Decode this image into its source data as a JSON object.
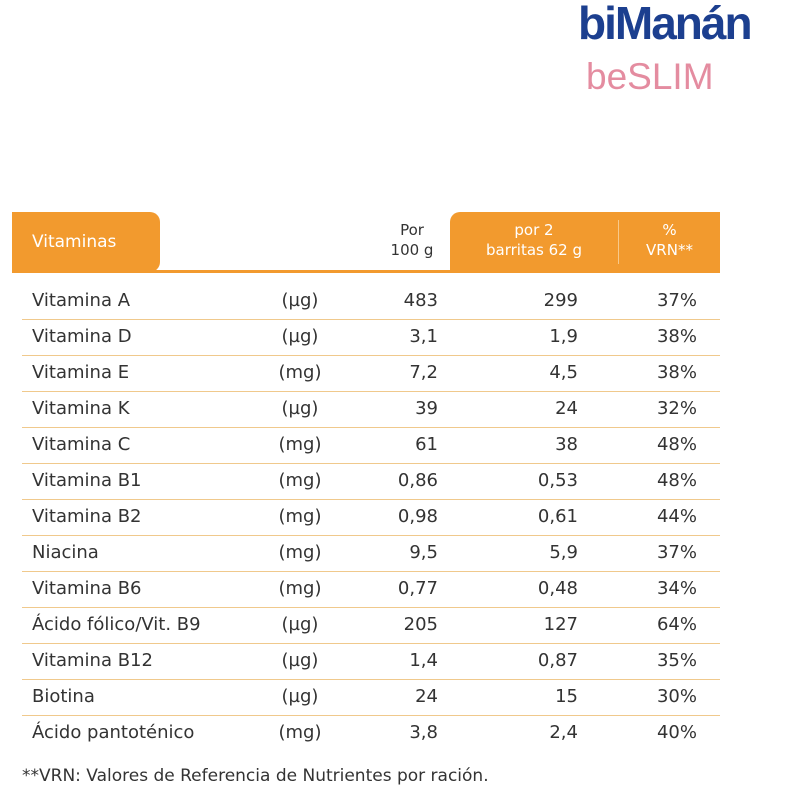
{
  "brand": {
    "name": "biManán",
    "product": "beSLIM"
  },
  "table": {
    "header": {
      "title": "Vitaminas",
      "per100": [
        "Por",
        "100 g"
      ],
      "per_serving": [
        "por 2",
        "barritas 62 g"
      ],
      "vrn": [
        "%",
        "VRN**"
      ]
    },
    "rows": [
      [
        "Vitamina A",
        "(µg)",
        "483",
        "299",
        "37%"
      ],
      [
        "Vitamina D",
        "(µg)",
        "3,1",
        "1,9",
        "38%"
      ],
      [
        "Vitamina E",
        "(mg)",
        "7,2",
        "4,5",
        "38%"
      ],
      [
        "Vitamina K",
        "(µg)",
        "39",
        "24",
        "32%"
      ],
      [
        "Vitamina C",
        "(mg)",
        "61",
        "38",
        "48%"
      ],
      [
        "Vitamina B1",
        "(mg)",
        "0,86",
        "0,53",
        "48%"
      ],
      [
        "Vitamina B2",
        "(mg)",
        "0,98",
        "0,61",
        "44%"
      ],
      [
        "Niacina",
        "(mg)",
        "9,5",
        "5,9",
        "37%"
      ],
      [
        "Vitamina B6",
        "(mg)",
        "0,77",
        "0,48",
        "34%"
      ],
      [
        "Ácido fólico/Vit. B9",
        "(µg)",
        "205",
        "127",
        "64%"
      ],
      [
        "Vitamina B12",
        "(µg)",
        "1,4",
        "0,87",
        "35%"
      ],
      [
        "Biotina",
        "(µg)",
        "24",
        "15",
        "30%"
      ],
      [
        "Ácido pantoténico",
        "(mg)",
        "3,8",
        "2,4",
        "40%"
      ]
    ]
  },
  "footnote": "**VRN: Valores de Referencia de Nutrientes por ración."
}
